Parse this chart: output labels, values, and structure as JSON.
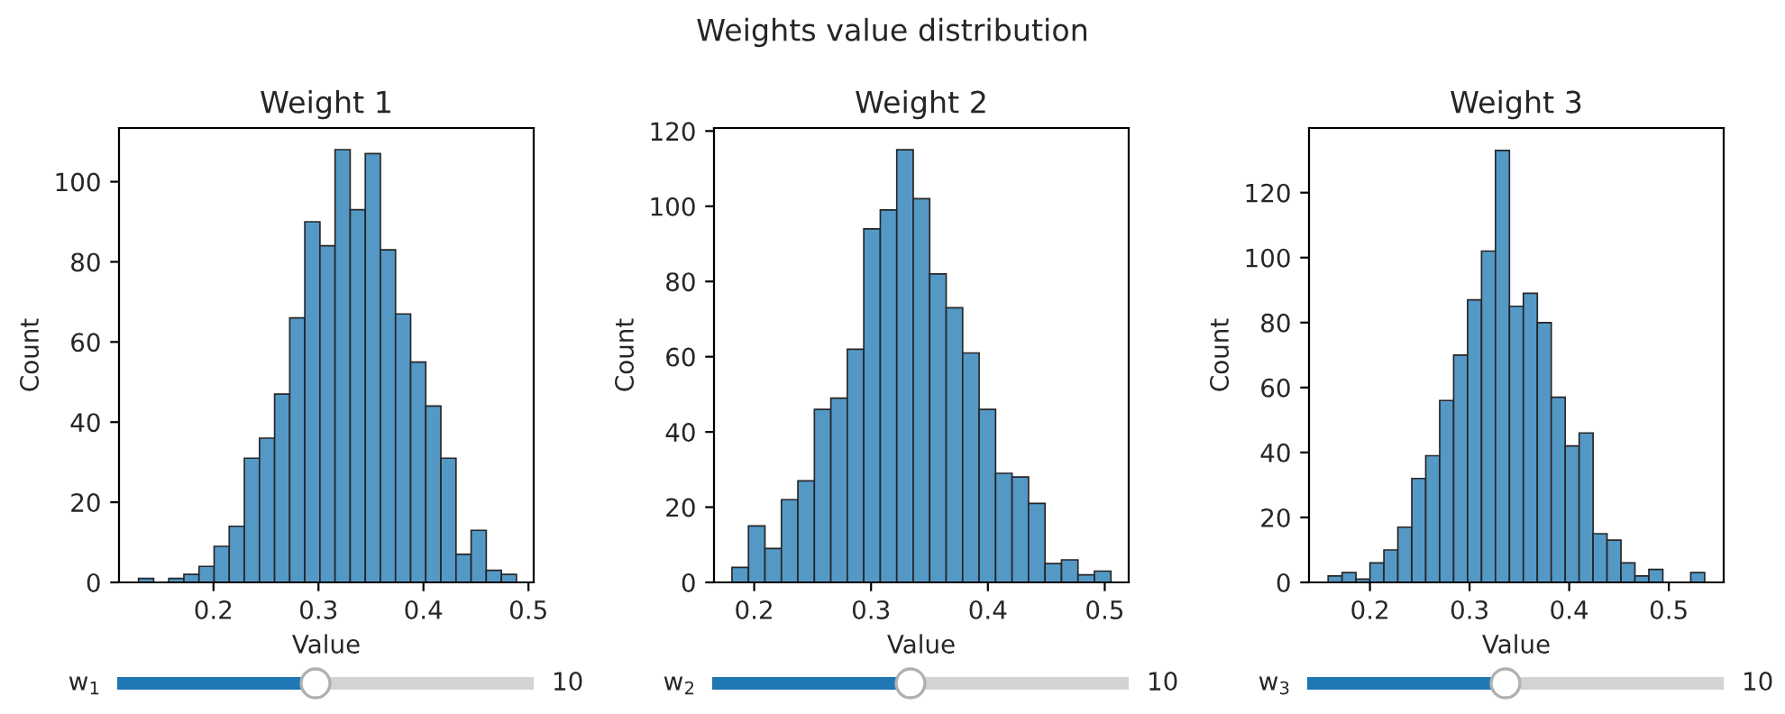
{
  "chart_data": [
    {
      "type": "histogram",
      "title": "Weight 1",
      "xlabel": "Value",
      "ylabel": "Count",
      "color": "#5498c6",
      "bins": [
        0.1286,
        0.143,
        0.1574,
        0.1718,
        0.1862,
        0.2006,
        0.215,
        0.2294,
        0.2438,
        0.2582,
        0.2726,
        0.287,
        0.3014,
        0.3158,
        0.3302,
        0.3446,
        0.359,
        0.3734,
        0.3878,
        0.4022,
        0.4166,
        0.431,
        0.4454,
        0.4598,
        0.4742,
        0.4886
      ],
      "values": [
        1,
        0,
        1,
        2,
        4,
        9,
        14,
        31,
        36,
        47,
        66,
        90,
        84,
        108,
        93,
        107,
        83,
        67,
        55,
        44,
        31,
        7,
        13,
        3,
        2
      ],
      "xlim": [
        0.11,
        0.505
      ],
      "xticks": [
        {
          "value": 0.2,
          "label": "0.2"
        },
        {
          "value": 0.3,
          "label": "0.3"
        },
        {
          "value": 0.4,
          "label": "0.4"
        },
        {
          "value": 0.5,
          "label": "0.5"
        }
      ],
      "ylim": [
        0,
        113.4
      ],
      "yticks": [
        0,
        20,
        40,
        60,
        80,
        100
      ],
      "grid": false,
      "annotations": [
        "w$_{1}$",
        "10",
        "Weights value distribution"
      ]
    },
    {
      "type": "histogram",
      "title": "Weight 2",
      "xlabel": "Value",
      "ylabel": "Count",
      "color": "#5498c6",
      "bins": [
        0.181,
        0.1951,
        0.2092,
        0.2233,
        0.2374,
        0.2515,
        0.2656,
        0.2797,
        0.2938,
        0.3079,
        0.322,
        0.3361,
        0.3502,
        0.3643,
        0.3784,
        0.3925,
        0.4066,
        0.4207,
        0.4348,
        0.4489,
        0.463,
        0.4771,
        0.4912,
        0.5053
      ],
      "values": [
        4,
        15,
        9,
        22,
        27,
        46,
        49,
        62,
        94,
        99,
        115,
        102,
        82,
        73,
        61,
        46,
        29,
        28,
        21,
        5,
        6,
        2,
        3
      ],
      "xlim": [
        0.1656,
        0.5205
      ],
      "xticks": [
        {
          "value": 0.2,
          "label": "0.2"
        },
        {
          "value": 0.3,
          "label": "0.3"
        },
        {
          "value": 0.4,
          "label": "0.4"
        },
        {
          "value": 0.5,
          "label": "0.5"
        }
      ],
      "ylim": [
        0,
        120.8
      ],
      "yticks": [
        0,
        20,
        40,
        60,
        80,
        100,
        120
      ],
      "grid": false,
      "annotations": [
        "w$_{2}$",
        "10"
      ]
    },
    {
      "type": "histogram",
      "title": "Weight 3",
      "xlabel": "Value",
      "ylabel": "Count",
      "color": "#5498c6",
      "bins": [
        0.158,
        0.172,
        0.186,
        0.2,
        0.214,
        0.228,
        0.242,
        0.256,
        0.27,
        0.284,
        0.298,
        0.312,
        0.326,
        0.34,
        0.354,
        0.368,
        0.382,
        0.396,
        0.41,
        0.424,
        0.438,
        0.452,
        0.466,
        0.48,
        0.494,
        0.508,
        0.522,
        0.536
      ],
      "values": [
        2,
        3,
        1,
        6,
        10,
        17,
        32,
        39,
        56,
        70,
        87,
        102,
        133,
        85,
        89,
        80,
        57,
        42,
        46,
        15,
        13,
        6,
        2,
        4,
        0,
        0,
        3
      ],
      "xlim": [
        0.1388,
        0.5551
      ],
      "xticks": [
        {
          "value": 0.2,
          "label": "0.2"
        },
        {
          "value": 0.3,
          "label": "0.3"
        },
        {
          "value": 0.4,
          "label": "0.4"
        },
        {
          "value": 0.5,
          "label": "0.5"
        }
      ],
      "ylim": [
        0,
        139.9
      ],
      "yticks": [
        0,
        20,
        40,
        60,
        80,
        100,
        120
      ],
      "grid": false,
      "annotations": [
        "w$_{3}$",
        "10"
      ]
    }
  ]
}
